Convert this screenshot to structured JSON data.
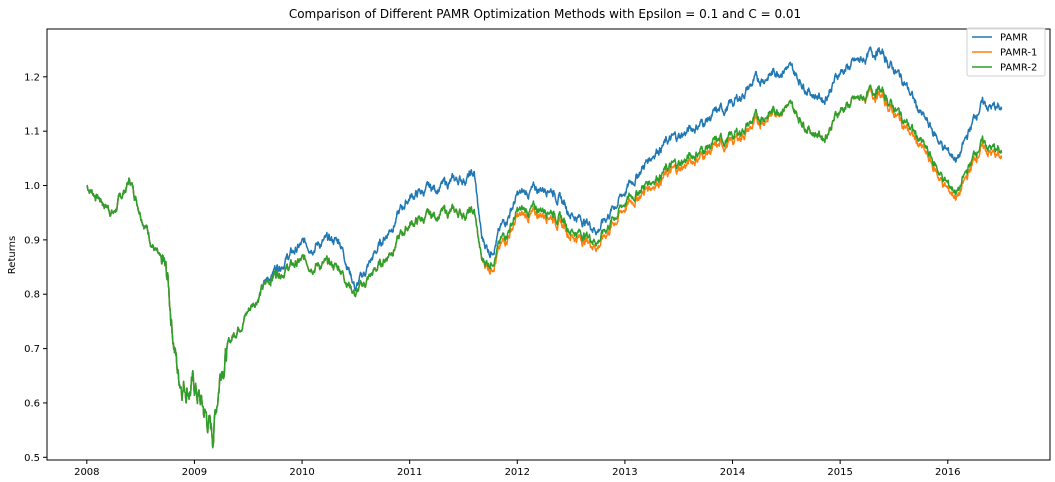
{
  "chart_data": {
    "type": "line",
    "title": "Comparison of Different PAMR Optimization Methods with Epsilon = 0.1 and C = 0.01",
    "xlabel": "",
    "ylabel": "Returns",
    "xlim": [
      2007.63,
      2016.95
    ],
    "ylim": [
      0.495,
      1.288
    ],
    "x_ticks": [
      2008,
      2009,
      2010,
      2011,
      2012,
      2013,
      2014,
      2015,
      2016
    ],
    "y_ticks": [
      0.5,
      0.6,
      0.7,
      0.8,
      0.9,
      1.0,
      1.1,
      1.2
    ],
    "grid": false,
    "legend_position": "upper right",
    "x": [
      2008.0,
      2008.25,
      2008.4,
      2008.6,
      2008.75,
      2008.85,
      2009.0,
      2009.17,
      2009.25,
      2009.4,
      2009.6,
      2009.75,
      2010.0,
      2010.35,
      2010.5,
      2010.75,
      2011.0,
      2011.3,
      2011.6,
      2011.67,
      2011.75,
      2012.0,
      2012.3,
      2012.5,
      2012.75,
      2013.0,
      2013.3,
      2013.5,
      2013.75,
      2014.0,
      2014.2,
      2014.5,
      2014.75,
      2014.85,
      2015.0,
      2015.2,
      2015.35,
      2015.6,
      2015.75,
      2016.0,
      2016.1,
      2016.3,
      2016.5
    ],
    "series": [
      {
        "name": "PAMR",
        "color": "#1f77b4",
        "values": [
          1.0,
          0.95,
          1.01,
          0.9,
          0.82,
          0.65,
          0.63,
          0.54,
          0.68,
          0.74,
          0.8,
          0.85,
          0.89,
          0.9,
          0.81,
          0.9,
          0.98,
          1.0,
          1.02,
          0.9,
          0.88,
          0.98,
          1.0,
          0.95,
          0.92,
          0.99,
          1.07,
          1.09,
          1.12,
          1.15,
          1.19,
          1.22,
          1.17,
          1.16,
          1.21,
          1.23,
          1.25,
          1.19,
          1.13,
          1.06,
          1.05,
          1.15,
          1.14
        ]
      },
      {
        "name": "PAMR-1",
        "color": "#ff7f0e",
        "values": [
          1.0,
          0.95,
          1.01,
          0.9,
          0.82,
          0.65,
          0.63,
          0.54,
          0.68,
          0.74,
          0.8,
          0.84,
          0.86,
          0.85,
          0.8,
          0.86,
          0.93,
          0.95,
          0.95,
          0.86,
          0.85,
          0.94,
          0.95,
          0.91,
          0.89,
          0.96,
          1.01,
          1.03,
          1.06,
          1.08,
          1.11,
          1.15,
          1.1,
          1.09,
          1.14,
          1.16,
          1.17,
          1.11,
          1.07,
          0.99,
          0.98,
          1.07,
          1.05
        ]
      },
      {
        "name": "PAMR-2",
        "color": "#2ca02c",
        "values": [
          1.0,
          0.95,
          1.01,
          0.9,
          0.82,
          0.65,
          0.63,
          0.54,
          0.68,
          0.74,
          0.8,
          0.84,
          0.86,
          0.85,
          0.8,
          0.86,
          0.93,
          0.95,
          0.95,
          0.86,
          0.86,
          0.95,
          0.96,
          0.92,
          0.9,
          0.97,
          1.02,
          1.04,
          1.07,
          1.09,
          1.12,
          1.15,
          1.1,
          1.09,
          1.14,
          1.16,
          1.18,
          1.12,
          1.08,
          1.0,
          0.99,
          1.08,
          1.06
        ]
      }
    ]
  }
}
